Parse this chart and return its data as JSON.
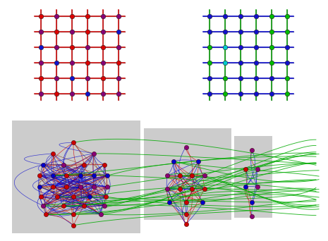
{
  "N": 6,
  "grid_size": 6,
  "background_color": "#ffffff",
  "gray_bg": "#cccccc",
  "grid1_line_red": "#cc0000",
  "grid1_line_gray": "#888888",
  "grid2_line_blue": "#0000cc",
  "grid2_line_green": "#009900",
  "grid2_line_gray": "#888888",
  "node_colors_g1": {
    "red": "#dd0000",
    "purple": "#880077",
    "blue": "#1111cc"
  },
  "node_colors_g2": {
    "green": "#00bb00",
    "blue": "#1111cc",
    "cyan": "#00cccc"
  },
  "graph_red": "#cc0000",
  "graph_blue": "#0000cc",
  "graph_green": "#00aa00",
  "graph_purple": "#880077",
  "graph_brown": "#884422",
  "cluster0_n": 32,
  "cluster1_n": 16,
  "cluster2_n": 8
}
